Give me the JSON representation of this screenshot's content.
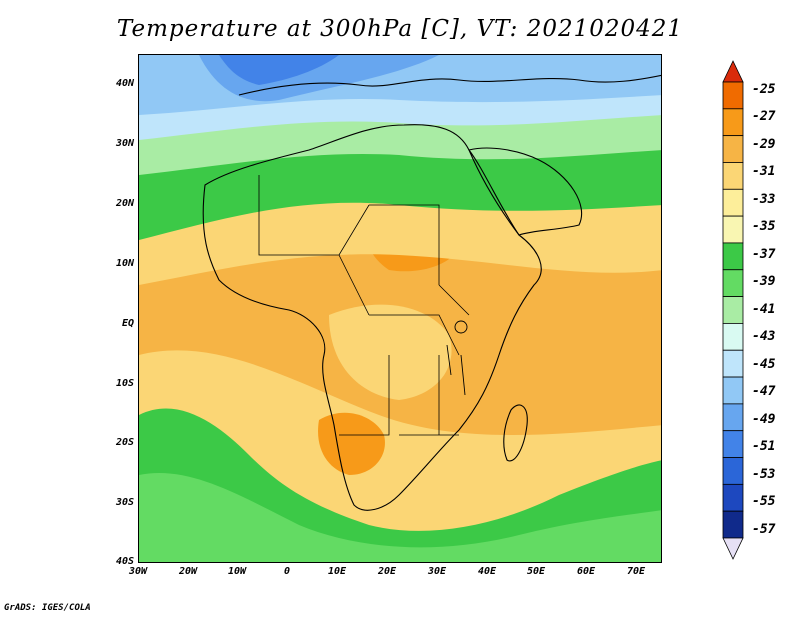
{
  "title": "Temperature at 300hPa [C], VT: 2021020421",
  "footer": "GrADS: IGES/COLA",
  "map": {
    "lat_labels": [
      "40N",
      "30N",
      "20N",
      "10N",
      "EQ",
      "10S",
      "20S",
      "30S",
      "40S"
    ],
    "lon_labels": [
      "30W",
      "20W",
      "10W",
      "0",
      "10E",
      "20E",
      "30E",
      "40E",
      "50E",
      "60E",
      "70E"
    ],
    "lat_range": [
      -40,
      45
    ],
    "lon_range": [
      -30,
      75
    ]
  },
  "colorbar": {
    "labels": [
      "-25",
      "-27",
      "-29",
      "-31",
      "-33",
      "-35",
      "-37",
      "-39",
      "-41",
      "-43",
      "-45",
      "-47",
      "-49",
      "-51",
      "-53",
      "-55",
      "-57"
    ],
    "colors": [
      "#d92b0b",
      "#f06b00",
      "#f79a19",
      "#f6b445",
      "#fbd675",
      "#fdee9a",
      "#f9f6b2",
      "#3cc947",
      "#63db63",
      "#a9eca4",
      "#d9faf2",
      "#bfe5fb",
      "#91c8f5",
      "#67a6ef",
      "#4283e8",
      "#2b66d8",
      "#1d48bf",
      "#102a8b",
      "#e6e0f5"
    ]
  }
}
